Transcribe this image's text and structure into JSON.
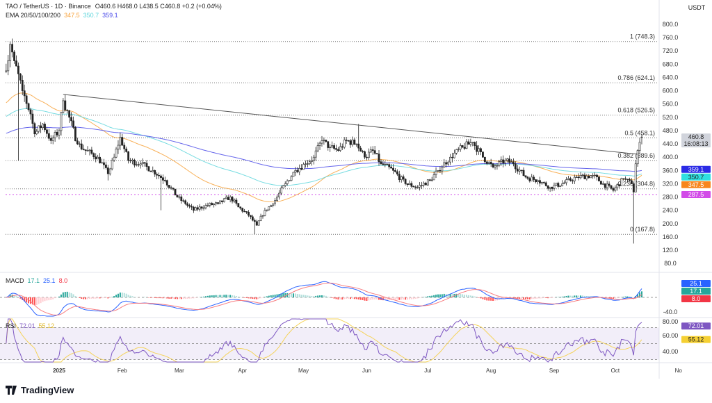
{
  "header": {
    "symbol": "TAO / TetherUS · 1D · Binance",
    "ohlc": "O460.6  H468.0  L438.5  C460.8  +0.2 (+0.04%)",
    "ema_label": "EMA 20/50/100/200",
    "ema_values": [
      "347.5",
      "350.7",
      "359.1"
    ],
    "currency": "USDT"
  },
  "colors": {
    "up": "#089981",
    "down": "#f23645",
    "ema_orange": "#f7a23b",
    "ema_cyan": "#5fd6dc",
    "ema_blue": "#4949e8",
    "macd": "#2962ff",
    "signal": "#f77c80",
    "rsi": "#7e57c2",
    "rsi_ma": "#f5d35a"
  },
  "chart_data": {
    "type": "candlestick",
    "title": "TAO / TetherUS · 1D · Binance",
    "ylim": [
      80,
      800
    ],
    "y_ticks": [
      "800.0",
      "760.0",
      "720.0",
      "680.0",
      "640.0",
      "600.0",
      "560.0",
      "520.0",
      "480.0",
      "440.0",
      "400.0",
      "360.0",
      "320.0",
      "280.0",
      "240.0",
      "200.0",
      "160.0",
      "120.0",
      "80.0"
    ],
    "x_ticks": [
      {
        "label": "2025",
        "date": "2025-01-01"
      },
      {
        "label": "Feb",
        "date": "2025-02-01"
      },
      {
        "label": "Mar",
        "date": "2025-03-01"
      },
      {
        "label": "Apr",
        "date": "2025-04-01"
      },
      {
        "label": "May",
        "date": "2025-05-01"
      },
      {
        "label": "Jun",
        "date": "2025-06-01"
      },
      {
        "label": "Jul",
        "date": "2025-07-01"
      },
      {
        "label": "Aug",
        "date": "2025-08-01"
      },
      {
        "label": "Sep",
        "date": "2025-09-01"
      },
      {
        "label": "Oct",
        "date": "2025-10-01"
      },
      {
        "label": "No",
        "date": "2025-11-01"
      }
    ],
    "close_path": [
      [
        "2024-12-06",
        660
      ],
      [
        "2024-12-08",
        740
      ],
      [
        "2024-12-10",
        690
      ],
      [
        "2024-12-14",
        600
      ],
      [
        "2024-12-18",
        530
      ],
      [
        "2024-12-20",
        470
      ],
      [
        "2024-12-24",
        500
      ],
      [
        "2024-12-28",
        450
      ],
      [
        "2025-01-01",
        480
      ],
      [
        "2025-01-03",
        570
      ],
      [
        "2025-01-06",
        520
      ],
      [
        "2025-01-10",
        440
      ],
      [
        "2025-01-14",
        420
      ],
      [
        "2025-01-20",
        400
      ],
      [
        "2025-01-25",
        350
      ],
      [
        "2025-01-28",
        400
      ],
      [
        "2025-01-31",
        460
      ],
      [
        "2025-02-04",
        390
      ],
      [
        "2025-02-10",
        380
      ],
      [
        "2025-02-16",
        360
      ],
      [
        "2025-02-22",
        330
      ],
      [
        "2025-02-28",
        280
      ],
      [
        "2025-03-04",
        260
      ],
      [
        "2025-03-08",
        240
      ],
      [
        "2025-03-14",
        255
      ],
      [
        "2025-03-20",
        260
      ],
      [
        "2025-03-26",
        280
      ],
      [
        "2025-03-30",
        250
      ],
      [
        "2025-04-04",
        225
      ],
      [
        "2025-04-08",
        195
      ],
      [
        "2025-04-12",
        240
      ],
      [
        "2025-04-16",
        260
      ],
      [
        "2025-04-22",
        320
      ],
      [
        "2025-04-27",
        360
      ],
      [
        "2025-05-02",
        380
      ],
      [
        "2025-05-06",
        400
      ],
      [
        "2025-05-10",
        450
      ],
      [
        "2025-05-14",
        430
      ],
      [
        "2025-05-18",
        420
      ],
      [
        "2025-05-22",
        450
      ],
      [
        "2025-05-27",
        440
      ],
      [
        "2025-05-31",
        400
      ],
      [
        "2025-06-04",
        420
      ],
      [
        "2025-06-08",
        380
      ],
      [
        "2025-06-14",
        360
      ],
      [
        "2025-06-20",
        320
      ],
      [
        "2025-06-26",
        310
      ],
      [
        "2025-07-02",
        330
      ],
      [
        "2025-07-06",
        360
      ],
      [
        "2025-07-12",
        400
      ],
      [
        "2025-07-18",
        430
      ],
      [
        "2025-07-23",
        445
      ],
      [
        "2025-07-28",
        400
      ],
      [
        "2025-08-02",
        370
      ],
      [
        "2025-08-08",
        390
      ],
      [
        "2025-08-12",
        380
      ],
      [
        "2025-08-18",
        340
      ],
      [
        "2025-08-24",
        330
      ],
      [
        "2025-08-30",
        310
      ],
      [
        "2025-09-05",
        320
      ],
      [
        "2025-09-12",
        340
      ],
      [
        "2025-09-20",
        345
      ],
      [
        "2025-09-25",
        320
      ],
      [
        "2025-09-30",
        300
      ],
      [
        "2025-10-05",
        335
      ],
      [
        "2025-10-09",
        320
      ],
      [
        "2025-10-10",
        295
      ],
      [
        "2025-10-11",
        380
      ],
      [
        "2025-10-12",
        420
      ],
      [
        "2025-10-13",
        445
      ],
      [
        "2025-10-14",
        460.8
      ]
    ],
    "wick_extremes": [
      {
        "date": "2024-12-08",
        "high": 748.3
      },
      {
        "date": "2024-12-12",
        "low": 390
      },
      {
        "date": "2025-01-25",
        "low": 330
      },
      {
        "date": "2025-02-20",
        "low": 240
      },
      {
        "date": "2025-04-07",
        "low": 167.8
      },
      {
        "date": "2025-05-28",
        "high": 500
      },
      {
        "date": "2025-10-10",
        "low": 140
      }
    ],
    "last_candle": {
      "open": 460.6,
      "high": 468.0,
      "low": 438.5,
      "close": 460.8
    },
    "trendline": [
      [
        "2025-01-03",
        589
      ],
      [
        "2025-10-12",
        409
      ]
    ],
    "fib_levels": [
      {
        "label": "1 (748.3)",
        "value": 748.3
      },
      {
        "label": "0.786 (624.1)",
        "value": 624.1
      },
      {
        "label": "0.618 (526.5)",
        "value": 526.5
      },
      {
        "label": "0.5 (458.1)",
        "value": 458.1
      },
      {
        "label": "0.382 (389.6)",
        "value": 389.6
      },
      {
        "label": "0.236 (304.8)",
        "value": 304.8
      },
      {
        "label": "0 (167.8)",
        "value": 167.8
      }
    ],
    "support_line": 287.5,
    "price_badges": [
      {
        "label": "460.8",
        "sub": "16:08:13",
        "value": 460.8,
        "color": "#d1d4dc"
      },
      {
        "label": "359.1",
        "value": 359.1,
        "color": "#2b2be6"
      },
      {
        "label": "350.7",
        "value": 350.7,
        "color": "#2fe0e0"
      },
      {
        "label": "347.5",
        "value": 347.5,
        "color": "#f7861c"
      },
      {
        "label": "287.5",
        "value": 287.5,
        "color": "#d24be8"
      }
    ]
  },
  "macd": {
    "label": "MACD",
    "values": [
      "17.1",
      "25.1",
      "8.0"
    ],
    "axis_label": "-40.0",
    "badges": [
      {
        "label": "25.1",
        "color": "#2962ff"
      },
      {
        "label": "17.1",
        "color": "#26a69a"
      },
      {
        "label": "8.0",
        "color": "#f23645"
      }
    ]
  },
  "rsi": {
    "label": "RSI",
    "values": [
      "72.01",
      "55.12"
    ],
    "axis_labels": [
      "80.00",
      "60.00",
      "40.00"
    ],
    "badges": [
      {
        "label": "72.01",
        "color": "#7e57c2"
      },
      {
        "label": "55.12",
        "color": "#f5d033"
      }
    ]
  },
  "footer": {
    "brand": "TradingView"
  }
}
